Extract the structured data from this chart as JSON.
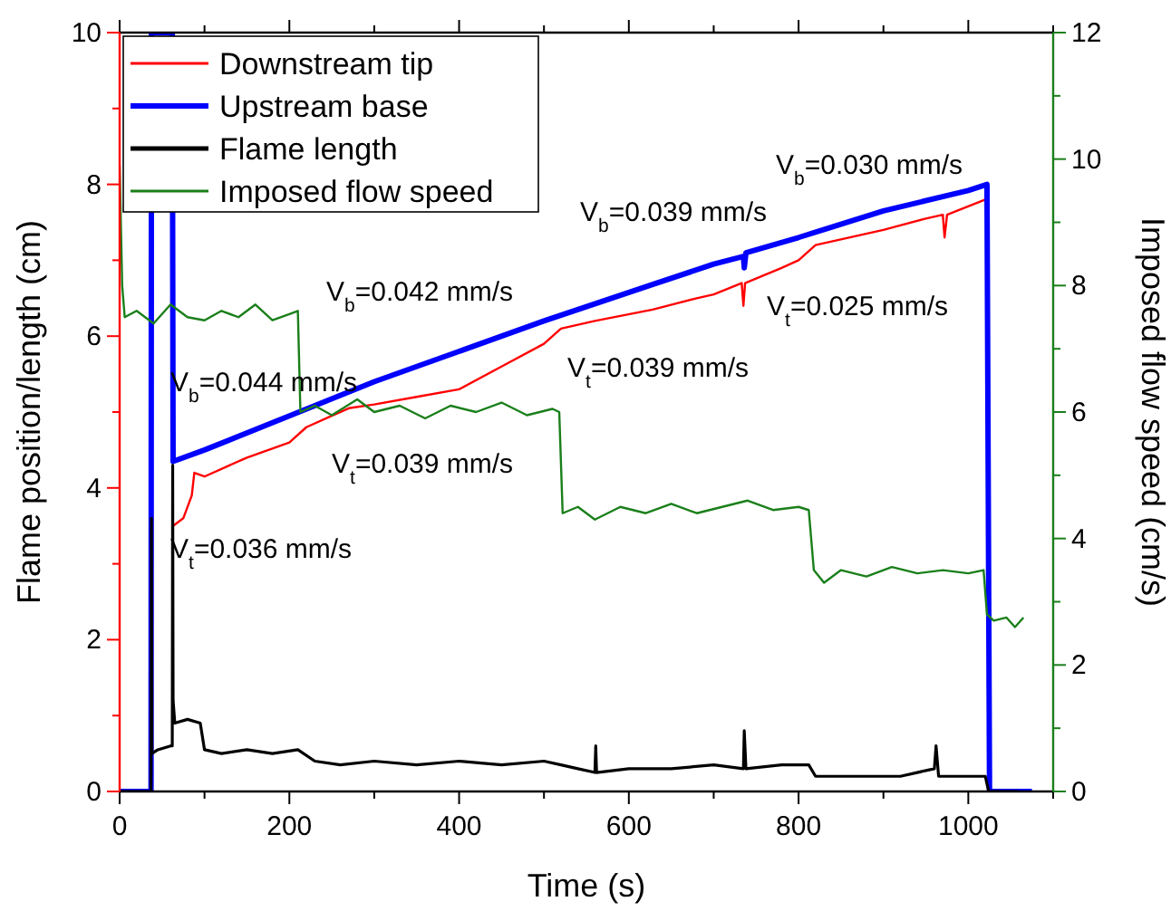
{
  "chart_data": {
    "type": "line",
    "xlabel": "Time (s)",
    "ylabel": "Flame position/length (cm)",
    "y2label": "Imposed flow speed (cm/s)",
    "xlim": [
      0,
      1100
    ],
    "xticks": [
      0,
      {
        "value": 100,
        "label": null
      },
      200,
      {
        "value": 300,
        "label": null
      },
      400,
      {
        "value": 500,
        "label": null
      },
      600,
      {
        "value": 700,
        "label": null
      },
      800,
      {
        "value": 900,
        "label": null
      },
      1000,
      {
        "value": 1100,
        "label": null
      }
    ],
    "ylim": [
      0,
      10
    ],
    "yticks": [
      0,
      {
        "value": 1,
        "label": null
      },
      2,
      {
        "value": 3,
        "label": null
      },
      4,
      {
        "value": 5,
        "label": null
      },
      6,
      {
        "value": 7,
        "label": null
      },
      8,
      {
        "value": 9,
        "label": null
      },
      10
    ],
    "y2lim": [
      0,
      12
    ],
    "y2ticks": [
      0,
      {
        "value": 1,
        "label": null
      },
      2,
      {
        "value": 3,
        "label": null
      },
      4,
      {
        "value": 5,
        "label": null
      },
      6,
      {
        "value": 7,
        "label": null
      },
      8,
      {
        "value": 9,
        "label": null
      },
      10,
      {
        "value": 11,
        "label": null
      },
      12
    ],
    "legend": "top left",
    "grid": false,
    "line_style": "solid",
    "series": [
      {
        "name": "Downstream tip",
        "color": "#ff0000",
        "x": [
          63,
          75,
          85,
          88,
          100,
          150,
          200,
          220,
          250,
          270,
          300,
          350,
          400,
          450,
          500,
          520,
          560,
          628,
          680,
          700,
          733,
          735,
          737,
          780,
          800,
          820,
          900,
          950,
          970,
          972,
          975,
          1020
        ],
        "values": [
          3.5,
          3.6,
          3.9,
          4.2,
          4.15,
          4.4,
          4.6,
          4.8,
          4.95,
          5.05,
          5.1,
          5.2,
          5.3,
          5.6,
          5.9,
          6.1,
          6.2,
          6.35,
          6.5,
          6.55,
          6.7,
          6.4,
          6.7,
          6.9,
          7.0,
          7.2,
          7.4,
          7.55,
          7.6,
          7.3,
          7.6,
          7.8
        ]
      },
      {
        "name": "Upstream base",
        "color": "#0000ff",
        "x": [
          0,
          37,
          37.5,
          62,
          63,
          100,
          200,
          300,
          400,
          500,
          628,
          700,
          735,
          736,
          738,
          800,
          900,
          1000,
          1022,
          1025,
          1075
        ],
        "values": [
          0,
          0,
          10,
          10,
          4.35,
          4.5,
          4.95,
          5.4,
          5.8,
          6.2,
          6.68,
          6.95,
          7.05,
          6.9,
          7.1,
          7.3,
          7.65,
          7.92,
          8.0,
          0,
          0
        ]
      },
      {
        "name": "Flame length",
        "color": "#000000",
        "x": [
          0,
          37,
          37.5,
          38,
          45,
          60,
          62,
          62.5,
          63,
          65,
          80,
          95,
          100,
          120,
          150,
          180,
          210,
          230,
          260,
          300,
          350,
          400,
          450,
          500,
          520,
          540,
          560,
          561,
          562,
          600,
          650,
          700,
          735,
          736,
          738,
          780,
          812,
          820,
          870,
          920,
          960,
          962,
          965,
          1020,
          1024,
          1060
        ],
        "values": [
          0,
          0,
          3.6,
          0.5,
          0.55,
          0.6,
          0.6,
          4.3,
          1.2,
          0.9,
          0.95,
          0.9,
          0.55,
          0.5,
          0.55,
          0.5,
          0.55,
          0.4,
          0.35,
          0.4,
          0.35,
          0.4,
          0.35,
          0.4,
          0.35,
          0.3,
          0.25,
          0.6,
          0.25,
          0.3,
          0.3,
          0.35,
          0.3,
          0.8,
          0.3,
          0.35,
          0.35,
          0.2,
          0.2,
          0.2,
          0.3,
          0.6,
          0.2,
          0.2,
          0,
          0
        ]
      },
      {
        "name": "Imposed flow speed",
        "color": "#1a7f1a",
        "axis": "y2",
        "x": [
          0,
          3,
          6,
          20,
          40,
          60,
          80,
          100,
          120,
          140,
          160,
          180,
          200,
          210,
          213,
          230,
          250,
          280,
          300,
          330,
          360,
          390,
          420,
          450,
          480,
          510,
          518,
          522,
          540,
          560,
          590,
          620,
          650,
          680,
          710,
          740,
          770,
          800,
          812,
          818,
          830,
          850,
          880,
          910,
          940,
          970,
          1000,
          1018,
          1022,
          1030,
          1045,
          1055,
          1065
        ],
        "values": [
          9.9,
          8.0,
          7.5,
          7.6,
          7.4,
          7.7,
          7.5,
          7.45,
          7.6,
          7.5,
          7.7,
          7.45,
          7.55,
          7.6,
          6.0,
          6.1,
          5.95,
          6.2,
          6.0,
          6.1,
          5.9,
          6.1,
          6.0,
          6.15,
          5.95,
          6.05,
          6.0,
          4.4,
          4.5,
          4.3,
          4.5,
          4.4,
          4.55,
          4.4,
          4.5,
          4.6,
          4.45,
          4.5,
          4.45,
          3.5,
          3.3,
          3.5,
          3.4,
          3.55,
          3.45,
          3.5,
          3.45,
          3.5,
          2.8,
          2.7,
          2.75,
          2.6,
          2.75
        ]
      }
    ],
    "annotations": [
      "V$_{b}$=0.044 mm/s",
      "V$_{b}$=0.042 mm/s",
      "V$_{b}$=0.039 mm/s",
      "V$_{b}$=0.030 mm/s",
      "V$_{t}$=0.025 mm/s",
      "V$_{t}$=0.039 mm/s",
      "V$_{t}$=0.039 mm/s",
      "V$_{t}$=0.036 mm/s"
    ]
  }
}
